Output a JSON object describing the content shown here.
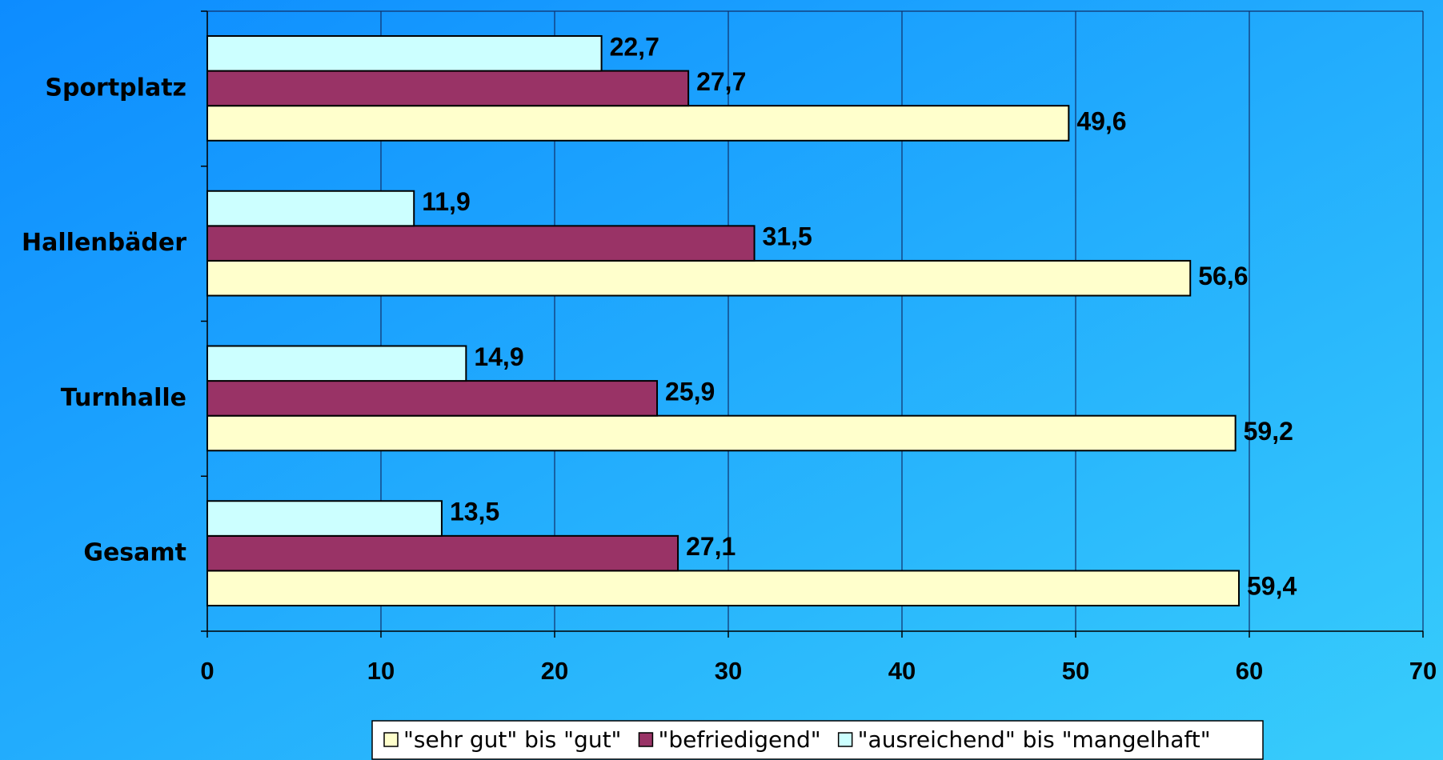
{
  "chart_data": {
    "type": "bar",
    "orientation": "horizontal",
    "categories": [
      "Sportplatz",
      "Hallenbäder",
      "Turnhalle",
      "Gesamt"
    ],
    "series": [
      {
        "name": "\"sehr gut\" bis \"gut\"",
        "color": "#ffffcc",
        "values": [
          49.6,
          56.6,
          59.2,
          59.4
        ],
        "value_labels": [
          "49,6",
          "56,6",
          "59,2",
          "59,4"
        ]
      },
      {
        "name": "\"befriedigend\"",
        "color": "#993366",
        "values": [
          27.7,
          31.5,
          25.9,
          27.1
        ],
        "value_labels": [
          "27,7",
          "31,5",
          "25,9",
          "27,1"
        ]
      },
      {
        "name": "\"ausreichend\" bis \"mangelhaft\"",
        "color": "#ccffff",
        "values": [
          22.7,
          11.9,
          14.9,
          13.5
        ],
        "value_labels": [
          "22,7",
          "11,9",
          "14,9",
          "13,5"
        ]
      }
    ],
    "xlim": [
      0,
      70
    ],
    "xticks": [
      0,
      10,
      20,
      30,
      40,
      50,
      60,
      70
    ],
    "grid": true,
    "legend": "bottom"
  }
}
